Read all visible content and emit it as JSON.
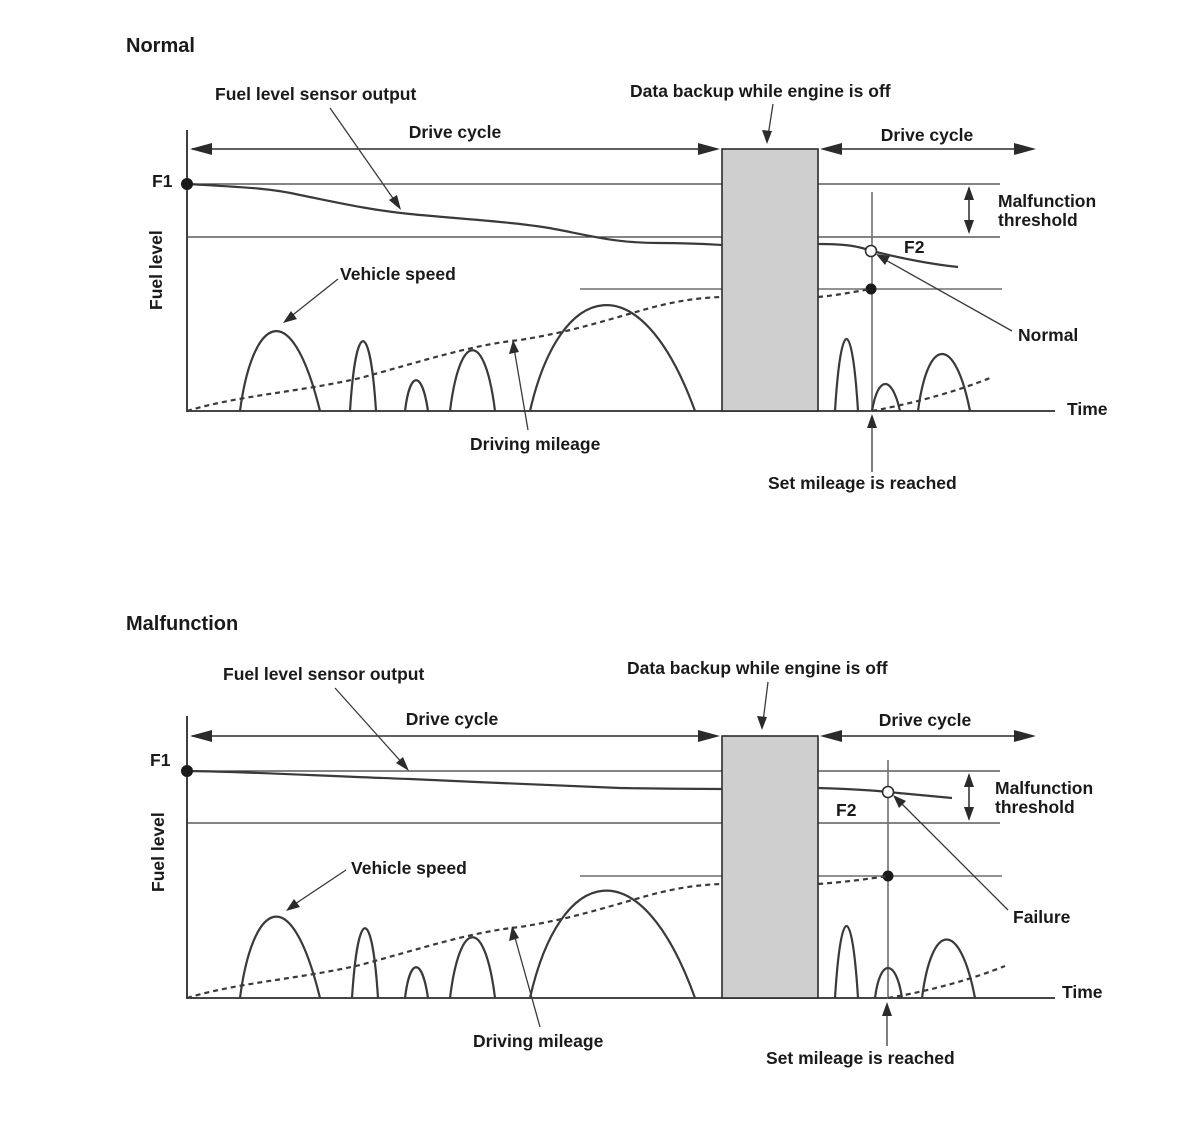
{
  "panels": [
    {
      "title": "Normal",
      "sensor_label": "Fuel level sensor output",
      "backup_label": "Data backup while engine is off",
      "drive_cycle_left": "Drive cycle",
      "drive_cycle_right": "Drive cycle",
      "f1_label": "F1",
      "f2_label": "F2",
      "y_axis_label": "Fuel level",
      "threshold_label_1": "Malfunction",
      "threshold_label_2": "threshold",
      "speed_label": "Vehicle speed",
      "mileage_label": "Driving mileage",
      "result_label": "Normal",
      "time_label": "Time",
      "set_mileage_label": "Set mileage is reached"
    },
    {
      "title": "Malfunction",
      "sensor_label": "Fuel level sensor output",
      "backup_label": "Data backup while engine is off",
      "drive_cycle_left": "Drive cycle",
      "drive_cycle_right": "Drive cycle",
      "f1_label": "F1",
      "f2_label": "F2",
      "y_axis_label": "Fuel level",
      "threshold_label_1": "Malfunction",
      "threshold_label_2": "threshold",
      "speed_label": "Vehicle speed",
      "mileage_label": "Driving mileage",
      "result_label": "Failure",
      "time_label": "Time",
      "set_mileage_label": "Set mileage is reached"
    }
  ]
}
